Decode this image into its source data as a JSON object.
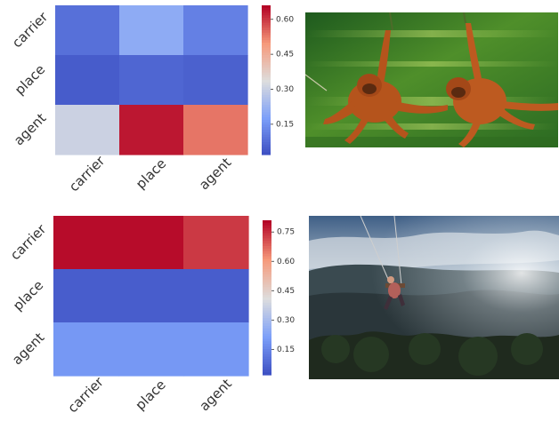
{
  "chart_data": [
    {
      "type": "heatmap",
      "rows": [
        "carrier",
        "place",
        "agent"
      ],
      "columns": [
        "carrier",
        "place",
        "agent"
      ],
      "values": [
        [
          0.09,
          0.21,
          0.12
        ],
        [
          0.05,
          0.07,
          0.06
        ],
        [
          0.31,
          0.64,
          0.54
        ]
      ],
      "colormap": "coolwarm",
      "colorbar": {
        "min": 0.02,
        "max": 0.66,
        "ticks": [
          "0.60",
          "0.45",
          "0.30",
          "0.15"
        ],
        "tick_values": [
          0.6,
          0.45,
          0.3,
          0.15
        ]
      }
    },
    {
      "type": "heatmap",
      "rows": [
        "carrier",
        "place",
        "agent"
      ],
      "columns": [
        "carrier",
        "place",
        "agent"
      ],
      "values": [
        [
          0.8,
          0.8,
          0.74
        ],
        [
          0.06,
          0.06,
          0.06
        ],
        [
          0.2,
          0.2,
          0.2
        ]
      ],
      "colormap": "coolwarm",
      "colorbar": {
        "min": 0.02,
        "max": 0.81,
        "ticks": [
          "0.75",
          "0.60",
          "0.45",
          "0.30",
          "0.15"
        ],
        "tick_values": [
          0.75,
          0.6,
          0.45,
          0.3,
          0.15
        ]
      }
    }
  ],
  "colors": {
    "coolwarm_low": "#3b4cc0",
    "coolwarm_mid": "#dddddd",
    "coolwarm_high": "#b40426",
    "text": "#333333"
  },
  "images": [
    {
      "icon": "orangutans-swinging-photo"
    },
    {
      "icon": "person-on-swing-over-valley-photo"
    }
  ]
}
